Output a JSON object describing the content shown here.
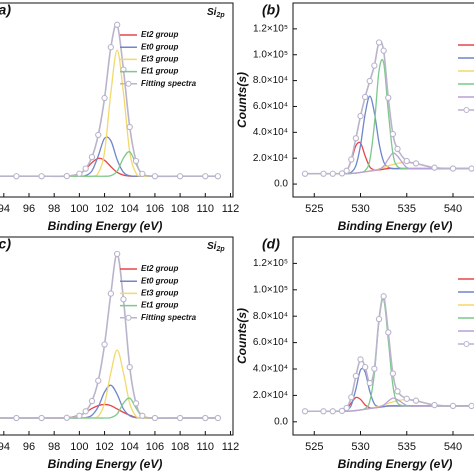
{
  "chart_data": [
    {
      "type": "line",
      "panel_label": "(a)",
      "annotation": {
        "text": "Si",
        "sub": "2p"
      },
      "x_label": "Binding Energy (eV)",
      "x": [
        93,
        95,
        97,
        99,
        100,
        100.5,
        101,
        101.5,
        102,
        102.5,
        103,
        103.5,
        104,
        104.5,
        105,
        106,
        108,
        110,
        111
      ],
      "xlim": [
        93.3,
        112.2
      ],
      "xticks": [
        94,
        96,
        98,
        100,
        102,
        104,
        106,
        108,
        110,
        112
      ],
      "ylim": [
        0,
        140
      ],
      "series": [
        {
          "name": "Et2 group",
          "color": "#e8454a",
          "values": [
            15,
            15,
            15,
            15.1,
            16.8,
            20,
            24.8,
            27.9,
            26.5,
            21.9,
            17.8,
            15.8,
            15.1,
            15,
            15,
            15,
            15,
            15,
            15
          ]
        },
        {
          "name": "Et0 group",
          "color": "#6f86c9",
          "values": [
            15,
            15,
            15,
            15,
            15,
            15.5,
            18.9,
            29.7,
            42.4,
            40.6,
            26.9,
            17.8,
            15.3,
            15,
            15,
            15,
            15,
            15,
            15
          ]
        },
        {
          "name": "Et3 group",
          "color": "#f2d96a",
          "values": [
            15,
            15,
            15,
            15,
            15,
            15,
            15.1,
            17.2,
            32.5,
            75.2,
            106,
            75.2,
            32.5,
            17.2,
            15.1,
            15,
            15,
            15,
            15
          ]
        },
        {
          "name": "Et1 group",
          "color": "#7cc98a",
          "values": [
            15,
            15,
            15,
            15,
            15,
            15,
            15,
            15,
            15,
            15.4,
            18.6,
            28.1,
            32.6,
            23.8,
            16.6,
            15,
            15,
            15,
            15
          ]
        },
        {
          "name": "Fitting spectra",
          "color": "#b9b4cc",
          "marker": "circle",
          "values": [
            15,
            15,
            15,
            15.1,
            16.8,
            20.5,
            28.8,
            44.8,
            71.4,
            108.1,
            124.3,
            91.9,
            50.5,
            26,
            16.7,
            15,
            15,
            15,
            15
          ]
        }
      ]
    },
    {
      "type": "line",
      "panel_label": "(b)",
      "x_label": "Binding Energy (eV)",
      "y_label": "Counts(s)",
      "x": [
        524,
        526,
        527,
        528,
        528.5,
        529,
        529.5,
        530,
        530.5,
        531,
        531.5,
        532,
        532.5,
        533,
        533.5,
        534,
        535,
        536,
        538,
        540,
        542
      ],
      "xlim": [
        522.7,
        544
      ],
      "xticks": [
        525,
        530,
        535,
        540
      ],
      "ylim": [
        -10000,
        140000
      ],
      "yticks": [
        {
          "value": 0,
          "label": "0.0"
        },
        {
          "value": 20000,
          "label": "2.0×10⁴"
        },
        {
          "value": 40000,
          "label": "4.0×10⁴"
        },
        {
          "value": 60000,
          "label": "6.0×10⁴"
        },
        {
          "value": 80000,
          "label": "8.0×10⁴"
        },
        {
          "value": 100000,
          "label": "1.0×10⁵"
        },
        {
          "value": 120000,
          "label": "1.2×10⁵"
        }
      ],
      "series": [
        {
          "color": "#e8454a",
          "values": [
            8000,
            8000,
            8000,
            8264,
            10280,
            18040,
            29620,
            31700,
            21740,
            13240,
            10930,
            11000,
            11500,
            12000,
            12000,
            12000,
            12000,
            12000,
            12000,
            12000,
            12000
          ]
        },
        {
          "color": "#6f86c9",
          "values": [
            8000,
            8000,
            8000,
            8000,
            8000,
            9186,
            14300,
            29880,
            54160,
            68000,
            55160,
            31880,
            17300,
            12986,
            12000,
            12000,
            12000,
            12000,
            12000,
            12000,
            12000
          ]
        },
        {
          "color": "#f2d96a",
          "values": [
            8000,
            8000,
            8000,
            8000,
            8000,
            8200,
            8500,
            9000,
            9500,
            10145,
            10830,
            11675,
            12750,
            14050,
            15050,
            16000,
            17000,
            16000,
            12675,
            12020,
            12000
          ]
        },
        {
          "color": "#7cc98a",
          "values": [
            8000,
            8000,
            8000,
            8000,
            8000,
            8200,
            8500,
            9000,
            10457,
            18265,
            46170,
            87560,
            93800,
            56370,
            23745,
            13566,
            12000,
            12000,
            12000,
            12000,
            12000
          ]
        },
        {
          "color": "#b9a0d8",
          "values": [
            8000,
            8000,
            8000,
            8000,
            8000,
            8200,
            8500,
            9000,
            9500,
            10000,
            10500,
            11360,
            13780,
            19320,
            23880,
            21600,
            12790,
            12000,
            12000,
            12000,
            12000
          ]
        },
        {
          "color": "#b9b4cc",
          "marker": "circle",
          "values": [
            8000,
            8000,
            8000,
            8264,
            10280,
            19026,
            35420,
            52580,
            67357,
            79650,
            91590,
            109475,
            103130,
            66726,
            38675,
            27166,
            17790,
            16000,
            12675,
            12020,
            12000
          ]
        }
      ]
    },
    {
      "type": "line",
      "panel_label": "(c)",
      "annotation": {
        "text": "Si",
        "sub": "2p"
      },
      "x_label": "Binding Energy (eV)",
      "x": [
        93,
        95,
        97,
        99,
        100,
        100.5,
        101,
        101.5,
        102,
        102.5,
        103,
        103.5,
        104,
        104.5,
        105,
        106,
        108,
        110,
        111
      ],
      "xlim": [
        93.3,
        112.2
      ],
      "xticks": [
        94,
        96,
        98,
        100,
        102,
        104,
        106,
        108,
        110,
        112
      ],
      "ylim": [
        0,
        175
      ],
      "series": [
        {
          "name": "Et2 group",
          "color": "#e8454a",
          "values": [
            15,
            15,
            15,
            15.2,
            17.5,
            20,
            23.5,
            26,
            27,
            26,
            23,
            20,
            17.5,
            15.6,
            15.2,
            15,
            15,
            15,
            15
          ]
        },
        {
          "name": "Et0 group",
          "color": "#6f86c9",
          "values": [
            15,
            15,
            15,
            15,
            15,
            15.4,
            17.5,
            25,
            38,
            44,
            36,
            23,
            17,
            15.3,
            15,
            15,
            15,
            15,
            15
          ]
        },
        {
          "name": "Et3 group",
          "color": "#f2d96a",
          "values": [
            15,
            15,
            15,
            15,
            15,
            15,
            15.1,
            16.5,
            28,
            55,
            75,
            55,
            28,
            16.5,
            15.1,
            15,
            15,
            15,
            15
          ]
        },
        {
          "name": "Et1 group",
          "color": "#7cc98a",
          "values": [
            15,
            15,
            15,
            15,
            15,
            15,
            15,
            15,
            15,
            15.4,
            18.6,
            28.1,
            32.6,
            23.8,
            16.6,
            15,
            15,
            15,
            15
          ]
        },
        {
          "name": "Fitting spectra",
          "color": "#b9b4cc",
          "marker": "circle",
          "values": [
            15,
            15,
            15,
            15.2,
            17,
            21,
            30,
            48,
            80,
            125,
            160,
            120,
            60,
            28,
            17,
            15,
            15,
            15,
            15
          ]
        }
      ]
    },
    {
      "type": "line",
      "panel_label": "(d)",
      "x_label": "Binding Energy (eV)",
      "y_label": "Counts(s)",
      "x": [
        524,
        526,
        527,
        528,
        528.5,
        529,
        529.5,
        530,
        530.5,
        531,
        531.5,
        532,
        532.5,
        533,
        533.5,
        534,
        535,
        536,
        538,
        540,
        542
      ],
      "xlim": [
        522.7,
        544
      ],
      "xticks": [
        525,
        530,
        535,
        540
      ],
      "ylim": [
        -10000,
        140000
      ],
      "yticks": [
        {
          "value": 0,
          "label": "0.0"
        },
        {
          "value": 20000,
          "label": "2.0×10⁴"
        },
        {
          "value": 40000,
          "label": "4.0×10⁴"
        },
        {
          "value": 60000,
          "label": "6.0×10⁴"
        },
        {
          "value": 80000,
          "label": "8.0×10⁴"
        },
        {
          "value": 100000,
          "label": "1.0×10⁵"
        },
        {
          "value": 120000,
          "label": "1.2×10⁵"
        }
      ],
      "series": [
        {
          "color": "#e8454a",
          "values": [
            8000,
            8000,
            8000,
            8280,
            9900,
            14300,
            18400,
            17000,
            12700,
            10660,
            10570,
            11000,
            11500,
            12000,
            12000,
            12000,
            12000,
            12000,
            12000,
            12000,
            12000
          ]
        },
        {
          "color": "#6f86c9",
          "values": [
            8000,
            8000,
            8000,
            8000,
            8580,
            12520,
            24820,
            39270,
            37660,
            23120,
            13540,
            11350,
            11500,
            12000,
            12000,
            12000,
            12000,
            12000,
            12000,
            12000,
            12000
          ]
        },
        {
          "color": "#f2d96a",
          "values": [
            8000,
            8000,
            8000,
            8000,
            8000,
            8200,
            8500,
            9000,
            9500,
            10145,
            10830,
            11675,
            12750,
            14050,
            15050,
            16000,
            17000,
            16000,
            12675,
            12020,
            12000
          ]
        },
        {
          "color": "#7cc98a",
          "values": [
            8000,
            8000,
            8000,
            8000,
            8000,
            8200,
            8500,
            9000,
            10070,
            15410,
            36740,
            76600,
            92680,
            62020,
            27580,
            14300,
            12000,
            12000,
            12000,
            12000,
            12000
          ]
        },
        {
          "color": "#b9a0d8",
          "values": [
            8000,
            8000,
            8000,
            8000,
            8000,
            8200,
            8500,
            9000,
            9500,
            10000,
            10500,
            11180,
            12640,
            15660,
            17940,
            16800,
            12400,
            12000,
            12000,
            12000,
            12000
          ]
        },
        {
          "color": "#b9b4cc",
          "marker": "circle",
          "values": [
            8000,
            8000,
            8000,
            8280,
            10480,
            18620,
            34720,
            47270,
            41430,
            29335,
            40180,
            77805,
            95070,
            67730,
            36570,
            23100,
            17400,
            16000,
            12675,
            12020,
            12000
          ]
        }
      ]
    }
  ]
}
